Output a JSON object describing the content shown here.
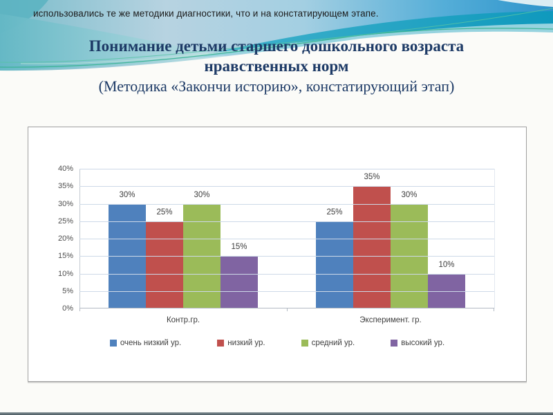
{
  "slide": {
    "top_note": "использовались те же методики диагностики, что и на констатирующем этапе.",
    "title_line1": "Понимание детьми старшего дошкольного возраста",
    "title_line2": "нравственных норм",
    "subtitle": "(Методика «Закончи историю», констатирующий этап)"
  },
  "theme": {
    "title_color": "#1d3a66",
    "wave_dark_teal": "#0f99bd",
    "wave_light_cyan": "#97d3df",
    "wave_green_accent": "#35b390",
    "sky_blue_right": "#2d93cb"
  },
  "chart_data": {
    "type": "bar",
    "title": "",
    "xlabel": "",
    "ylabel": "",
    "categories": [
      "Контр.гр.",
      "Эксперимент. гр."
    ],
    "series": [
      {
        "name": "очень низкий ур.",
        "color": "#4F81BD",
        "values": [
          30,
          25
        ]
      },
      {
        "name": "низкий ур.",
        "color": "#C0504D",
        "values": [
          25,
          35
        ]
      },
      {
        "name": "средний ур.",
        "color": "#9BBB59",
        "values": [
          30,
          30
        ]
      },
      {
        "name": "высокий ур.",
        "color": "#8064A2",
        "values": [
          15,
          10
        ]
      }
    ],
    "value_suffix": "%",
    "data_labels": [
      "30%",
      "25%",
      "30%",
      "15%",
      "25%",
      "35%",
      "30%",
      "10%"
    ],
    "ylim": [
      0,
      40
    ],
    "ytick_step": 5,
    "yticks": [
      "0%",
      "5%",
      "10%",
      "15%",
      "20%",
      "25%",
      "30%",
      "35%",
      "40%"
    ],
    "grid": true,
    "legend_position": "bottom"
  }
}
